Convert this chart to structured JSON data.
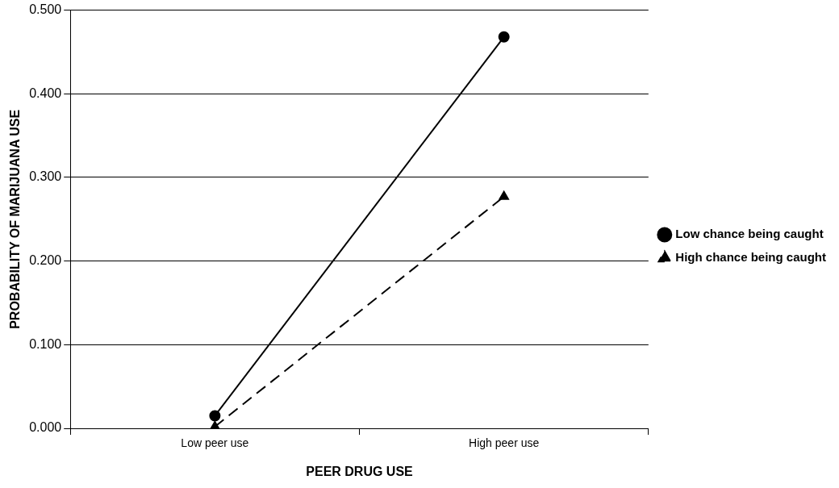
{
  "chart_data": {
    "type": "line",
    "xlabel": "PEER DRUG USE",
    "ylabel": "PROBABILITY OF MARIJUANA USE",
    "categories": [
      "Low peer use",
      "High peer use"
    ],
    "series": [
      {
        "name": "Low chance being caught",
        "color": "#000000",
        "values": [
          0.015,
          0.468
        ],
        "marker": "circle",
        "line_style": "solid"
      },
      {
        "name": "High chance being caught",
        "color": "#000000",
        "values": [
          0.002,
          0.277
        ],
        "marker": "triangle",
        "line_style": "dashed"
      }
    ],
    "ylim": [
      0,
      0.5
    ],
    "yticks": [
      {
        "value": 0,
        "label": "0.000"
      },
      {
        "value": 0.1,
        "label": "0.100"
      },
      {
        "value": 0.2,
        "label": "0.200"
      },
      {
        "value": 0.3,
        "label": "0.300"
      },
      {
        "value": 0.4,
        "label": "0.400"
      },
      {
        "value": 0.5,
        "label": "0.500"
      }
    ],
    "grid": "y",
    "legend": "right"
  }
}
